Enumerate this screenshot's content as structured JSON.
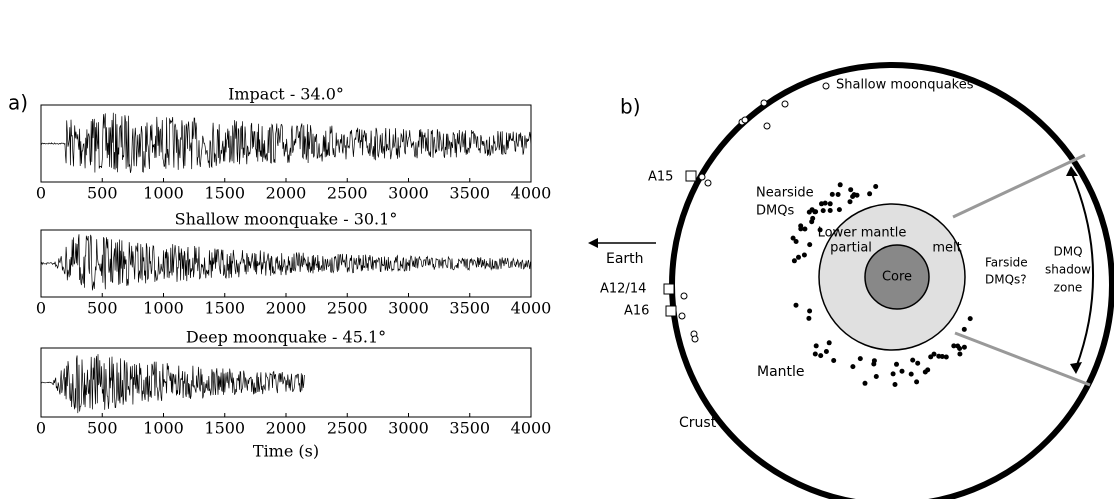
{
  "panel_a": {
    "label": "a)",
    "plots": [
      {
        "title": "Impact - 34.0°",
        "xticks": [
          0,
          500,
          1000,
          1500,
          2000,
          2500,
          3000,
          3500,
          4000
        ]
      },
      {
        "title": "Shallow moonquake - 30.1°",
        "xticks": [
          0,
          500,
          1000,
          1500,
          2000,
          2500,
          3000,
          3500,
          4000
        ]
      },
      {
        "title": "Deep moonquake - 45.1°",
        "xticks": [
          0,
          500,
          1000,
          1500,
          2000,
          2500,
          3000,
          3500,
          4000
        ]
      }
    ],
    "xlabel": "Time (s)"
  },
  "panel_b": {
    "label": "b)",
    "shallow": "Shallow moonquakes",
    "a15": "A15",
    "a1214": "A12/14",
    "a16": "A16",
    "earth": "Earth",
    "nearside": [
      "Nearside",
      "DMQs"
    ],
    "lower_mantle": "Lower mantle",
    "partial": "partial",
    "melt": "melt",
    "core": "Core",
    "farside": [
      "Farside",
      "DMQs?"
    ],
    "shadow": [
      "DMQ",
      "shadow",
      "zone"
    ],
    "mantle": "Mantle",
    "crust": "Crust"
  }
}
